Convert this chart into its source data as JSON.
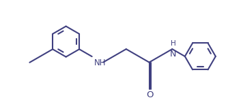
{
  "background_color": "#ffffff",
  "line_color": "#404080",
  "line_width": 1.5,
  "font_size": 8.5,
  "figsize": [
    3.53,
    1.47
  ],
  "dpi": 100,
  "xlim": [
    0.0,
    7.2
  ],
  "ylim": [
    -0.5,
    3.0
  ]
}
